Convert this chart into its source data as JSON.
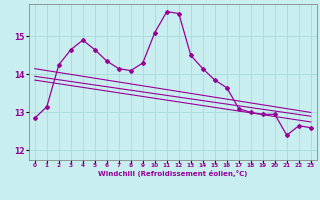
{
  "title": "",
  "xlabel": "Windchill (Refroidissement éolien,°C)",
  "ylabel": "",
  "bg_color": "#c8eef0",
  "grid_color": "#aadddd",
  "line_color": "#990099",
  "xlim": [
    -0.5,
    23.5
  ],
  "ylim": [
    11.75,
    15.85
  ],
  "yticks": [
    12,
    13,
    14,
    15
  ],
  "xticks": [
    0,
    1,
    2,
    3,
    4,
    5,
    6,
    7,
    8,
    9,
    10,
    11,
    12,
    13,
    14,
    15,
    16,
    17,
    18,
    19,
    20,
    21,
    22,
    23
  ],
  "main_x": [
    0,
    1,
    2,
    3,
    4,
    5,
    6,
    7,
    8,
    9,
    10,
    11,
    12,
    13,
    14,
    15,
    16,
    17,
    18,
    19,
    20,
    21,
    22,
    23
  ],
  "main_y": [
    12.85,
    13.15,
    14.25,
    14.65,
    14.9,
    14.65,
    14.35,
    14.15,
    14.1,
    14.3,
    15.1,
    15.65,
    15.6,
    14.5,
    14.15,
    13.85,
    13.65,
    13.1,
    13.0,
    12.95,
    12.95,
    12.4,
    12.65,
    12.6
  ],
  "line1_x": [
    0,
    23
  ],
  "line1_y": [
    14.15,
    13.0
  ],
  "line2_x": [
    0,
    23
  ],
  "line2_y": [
    13.95,
    12.9
  ],
  "line3_x": [
    0,
    23
  ],
  "line3_y": [
    13.85,
    12.75
  ]
}
